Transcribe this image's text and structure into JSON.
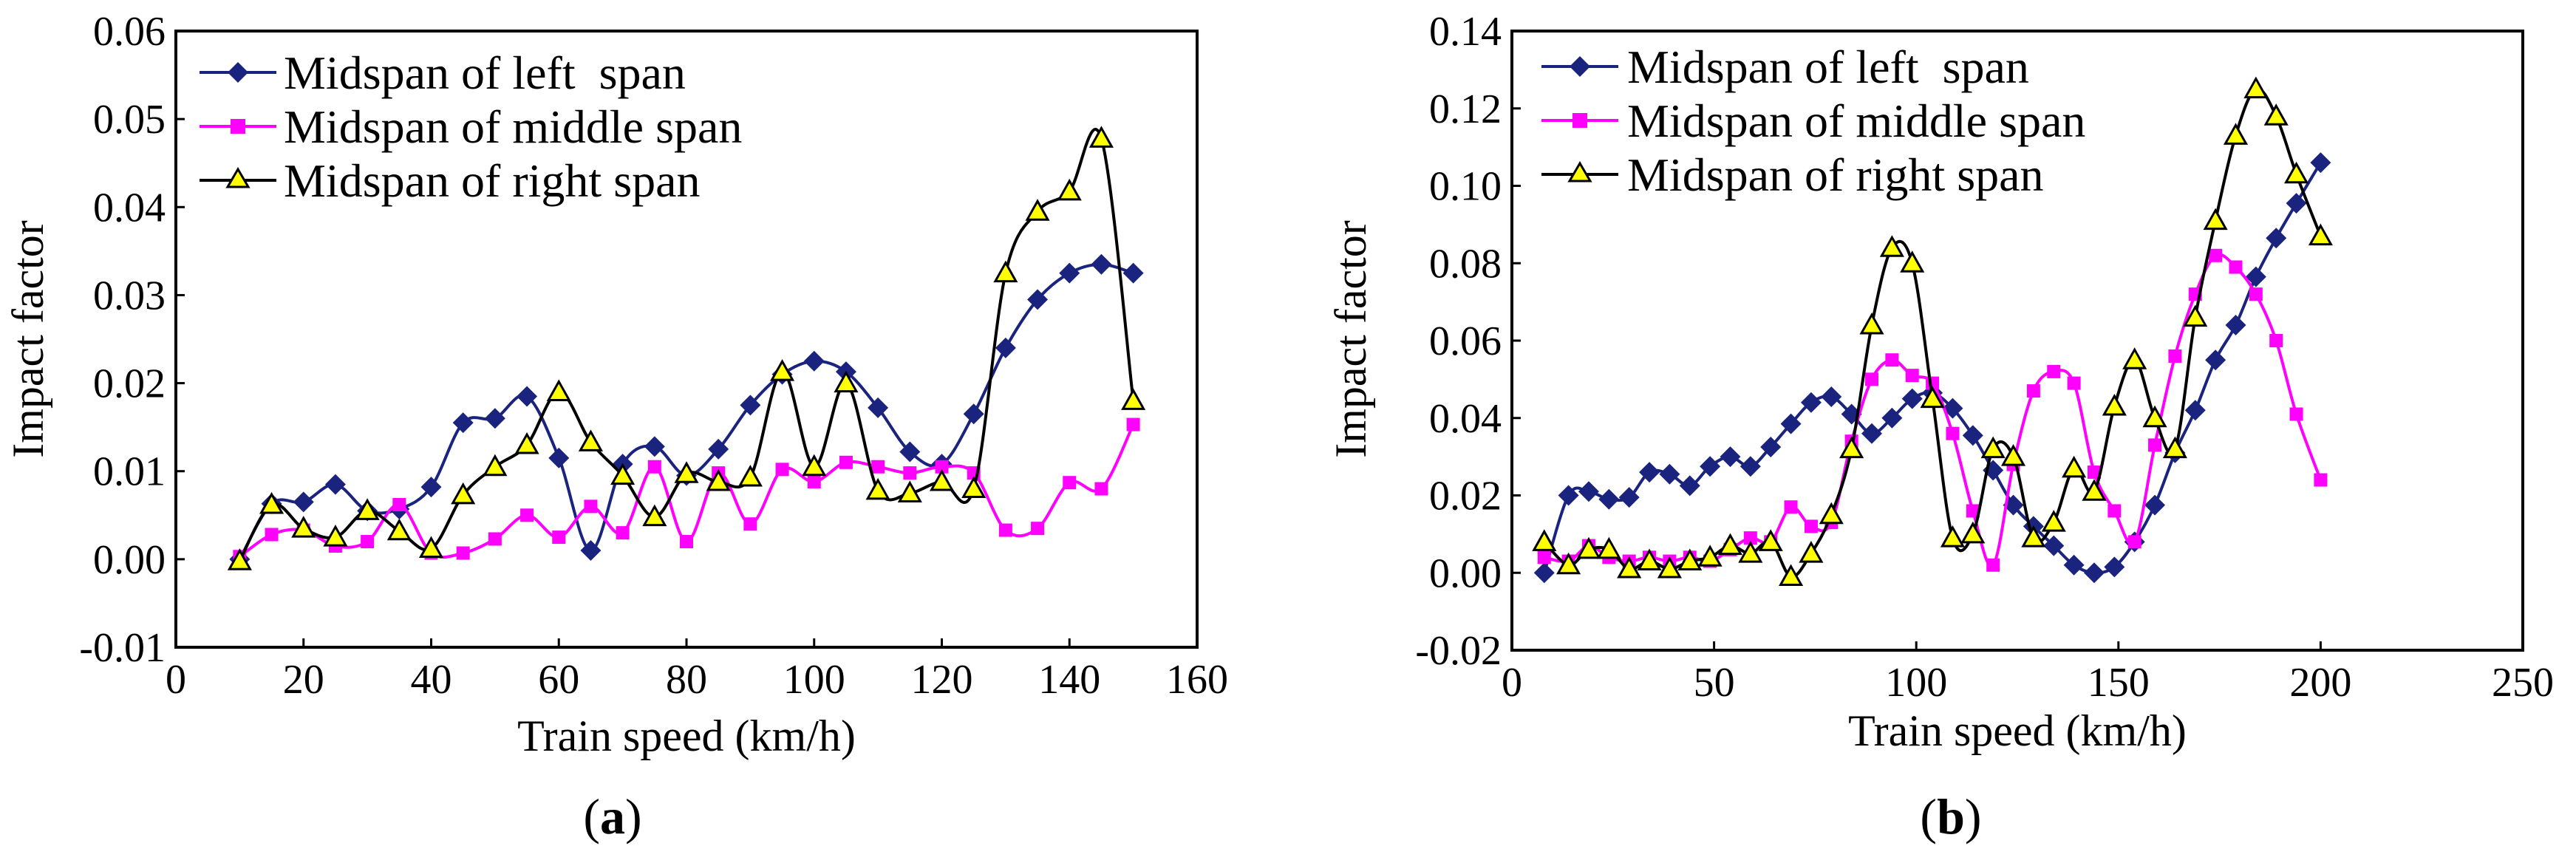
{
  "chart_data": [
    {
      "type": "line",
      "panel": "a",
      "caption_open": "(",
      "caption_letter": "a",
      "caption_close": ")",
      "title": "",
      "xlabel": "Train speed (km/h)",
      "ylabel": "Impact factor",
      "xlim": [
        0,
        160
      ],
      "ylim": [
        -0.01,
        0.06
      ],
      "xticks": [
        0,
        20,
        40,
        60,
        80,
        100,
        120,
        140,
        160
      ],
      "xtick_labels": [
        "0",
        "20",
        "40",
        "60",
        "80",
        "100",
        "120",
        "140",
        "160"
      ],
      "yticks": [
        -0.01,
        0.0,
        0.01,
        0.02,
        0.03,
        0.04,
        0.05,
        0.06
      ],
      "ytick_labels": [
        "-0.01",
        "0.00",
        "0.01",
        "0.02",
        "0.03",
        "0.04",
        "0.05",
        "0.06"
      ],
      "legend_position": "top-left",
      "grid": false,
      "series": [
        {
          "name": "Midspan of left  span",
          "color": "#1a237e",
          "marker": "diamond",
          "x": [
            10,
            15,
            20,
            25,
            30,
            35,
            40,
            45,
            50,
            55,
            60,
            65,
            70,
            75,
            80,
            85,
            90,
            95,
            100,
            105,
            110,
            115,
            120,
            125,
            130,
            135,
            140,
            145,
            150
          ],
          "values": [
            0.0,
            0.0063,
            0.0065,
            0.0085,
            0.0055,
            0.0057,
            0.0082,
            0.0155,
            0.016,
            0.0185,
            0.0115,
            0.001,
            0.0108,
            0.0128,
            0.0095,
            0.0125,
            0.0175,
            0.021,
            0.0225,
            0.0213,
            0.0172,
            0.0122,
            0.0108,
            0.0165,
            0.024,
            0.0295,
            0.0325,
            0.0335,
            0.0325
          ]
        },
        {
          "name": "Midspan of middle span",
          "color": "#ff00ff",
          "marker": "square",
          "x": [
            10,
            15,
            20,
            25,
            30,
            35,
            40,
            45,
            50,
            55,
            60,
            65,
            70,
            75,
            80,
            85,
            90,
            95,
            100,
            105,
            110,
            115,
            120,
            125,
            130,
            135,
            140,
            145,
            150
          ],
          "values": [
            0.0003,
            0.0028,
            0.0033,
            0.0015,
            0.002,
            0.0062,
            0.0007,
            0.0007,
            0.0023,
            0.005,
            0.0025,
            0.006,
            0.003,
            0.0105,
            0.002,
            0.0098,
            0.004,
            0.0102,
            0.0088,
            0.011,
            0.0105,
            0.0098,
            0.0105,
            0.0098,
            0.0033,
            0.0035,
            0.0087,
            0.008,
            0.0153
          ]
        },
        {
          "name": "Midspan of right span",
          "color": "#000000",
          "fill": "#ffff00",
          "marker": "triangle",
          "x": [
            10,
            15,
            20,
            25,
            30,
            35,
            40,
            45,
            50,
            55,
            60,
            65,
            70,
            75,
            80,
            85,
            90,
            95,
            100,
            105,
            110,
            115,
            120,
            125,
            130,
            135,
            140,
            145,
            150
          ],
          "values": [
            -0.0002,
            0.0062,
            0.0035,
            0.0025,
            0.0055,
            0.0032,
            0.0012,
            0.0073,
            0.0105,
            0.013,
            0.019,
            0.0133,
            0.0095,
            0.0048,
            0.0097,
            0.0088,
            0.0093,
            0.0213,
            0.0105,
            0.02,
            0.0078,
            0.0075,
            0.0088,
            0.008,
            0.0325,
            0.0395,
            0.0418,
            0.0478,
            0.018
          ]
        }
      ]
    },
    {
      "type": "line",
      "panel": "b",
      "caption_open": "(",
      "caption_letter": "b",
      "caption_close": ")",
      "title": "",
      "xlabel": "Train speed (km/h)",
      "ylabel": "Impact factor",
      "xlim": [
        0,
        250
      ],
      "ylim": [
        -0.02,
        0.14
      ],
      "xticks": [
        0,
        50,
        100,
        150,
        200,
        250
      ],
      "xtick_labels": [
        "0",
        "50",
        "100",
        "150",
        "200",
        "250"
      ],
      "yticks": [
        -0.02,
        0.0,
        0.02,
        0.04,
        0.06,
        0.08,
        0.1,
        0.12,
        0.14
      ],
      "ytick_labels": [
        "-0.02",
        "0.00",
        "0.02",
        "0.04",
        "0.06",
        "0.08",
        "0.10",
        "0.12",
        "0.14"
      ],
      "legend_position": "top-left",
      "grid": false,
      "series": [
        {
          "name": "Midspan of left  span",
          "color": "#1a237e",
          "marker": "diamond",
          "x": [
            8,
            14,
            19,
            24,
            29,
            34,
            39,
            44,
            49,
            54,
            59,
            64,
            69,
            74,
            79,
            84,
            89,
            94,
            99,
            104,
            109,
            114,
            119,
            124,
            129,
            134,
            139,
            144,
            149,
            154,
            159,
            164,
            169,
            174,
            179,
            184,
            189,
            194,
            200
          ],
          "values": [
            0.0,
            0.02,
            0.021,
            0.019,
            0.0195,
            0.026,
            0.0255,
            0.0225,
            0.0275,
            0.03,
            0.0275,
            0.0325,
            0.0385,
            0.044,
            0.0455,
            0.041,
            0.036,
            0.04,
            0.045,
            0.0465,
            0.0425,
            0.0355,
            0.0265,
            0.0175,
            0.012,
            0.007,
            0.002,
            0.0,
            0.0015,
            0.008,
            0.0175,
            0.031,
            0.042,
            0.055,
            0.064,
            0.0765,
            0.0865,
            0.0955,
            0.106
          ]
        },
        {
          "name": "Midspan of middle span",
          "color": "#ff00ff",
          "marker": "square",
          "x": [
            8,
            14,
            19,
            24,
            29,
            34,
            39,
            44,
            49,
            54,
            59,
            64,
            69,
            74,
            79,
            84,
            89,
            94,
            99,
            104,
            109,
            114,
            119,
            124,
            129,
            134,
            139,
            144,
            149,
            154,
            159,
            164,
            169,
            174,
            179,
            184,
            189,
            194,
            200
          ],
          "values": [
            0.004,
            0.003,
            0.007,
            0.004,
            0.003,
            0.004,
            0.003,
            0.004,
            0.003,
            0.006,
            0.009,
            0.008,
            0.017,
            0.012,
            0.013,
            0.034,
            0.05,
            0.055,
            0.051,
            0.049,
            0.036,
            0.016,
            0.002,
            0.028,
            0.047,
            0.052,
            0.049,
            0.026,
            0.016,
            0.008,
            0.033,
            0.056,
            0.072,
            0.082,
            0.079,
            0.072,
            0.06,
            0.041,
            0.024
          ]
        },
        {
          "name": "Midspan of right span",
          "color": "#000000",
          "fill": "#ffff00",
          "marker": "triangle",
          "x": [
            8,
            14,
            19,
            24,
            29,
            34,
            39,
            44,
            49,
            54,
            59,
            64,
            69,
            74,
            79,
            84,
            89,
            94,
            99,
            104,
            109,
            114,
            119,
            124,
            129,
            134,
            139,
            144,
            149,
            154,
            159,
            164,
            169,
            174,
            179,
            184,
            189,
            194,
            200
          ],
          "values": [
            0.008,
            0.002,
            0.006,
            0.006,
            0.001,
            0.003,
            0.001,
            0.003,
            0.004,
            0.007,
            0.005,
            0.008,
            -0.001,
            0.005,
            0.015,
            0.032,
            0.064,
            0.084,
            0.08,
            0.045,
            0.009,
            0.01,
            0.032,
            0.03,
            0.009,
            0.013,
            0.027,
            0.021,
            0.043,
            0.055,
            0.04,
            0.032,
            0.066,
            0.091,
            0.113,
            0.125,
            0.118,
            0.103,
            0.087
          ]
        }
      ]
    }
  ]
}
